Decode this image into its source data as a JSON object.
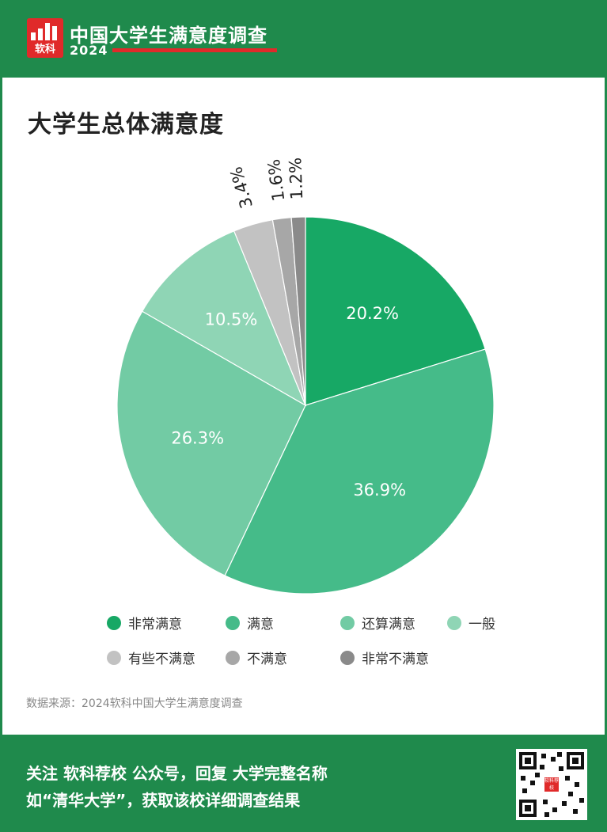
{
  "header": {
    "logo_text": "软科",
    "survey_title": "中国大学生满意度调查",
    "survey_year": "2024"
  },
  "chart_data": {
    "type": "pie",
    "title": "大学生总体满意度",
    "categories": [
      "非常满意",
      "满意",
      "还算满意",
      "一般",
      "有些不满意",
      "不满意",
      "非常不满意"
    ],
    "values": [
      20.2,
      36.9,
      26.3,
      10.5,
      3.4,
      1.6,
      1.2
    ],
    "labels": [
      "20.2%",
      "36.9%",
      "26.3%",
      "10.5%",
      "3.4%",
      "1.6%",
      "1.2%"
    ],
    "colors": [
      "#17a865",
      "#45bb89",
      "#72cba4",
      "#8fd5b5",
      "#c2c2c2",
      "#a7a7a7",
      "#8a8a8a"
    ],
    "legend_position": "bottom"
  },
  "source": "数据来源：2024软科中国大学生满意度调查",
  "footer": {
    "cta_line1": "关注 软科荐校 公众号，回复 大学完整名称",
    "cta_line2": "如“清华大学”，获取该校详细调查结果",
    "qr_label": "软科荐校"
  }
}
